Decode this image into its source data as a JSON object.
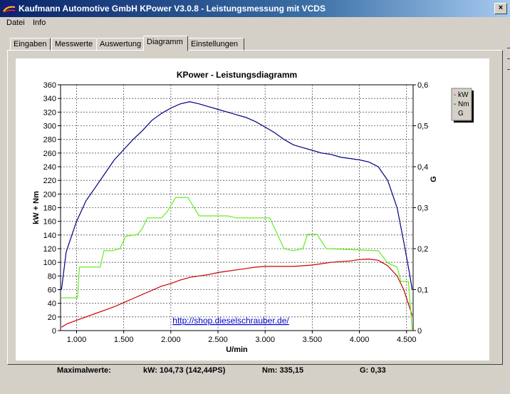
{
  "window": {
    "title": "Kaufmann Automotive GmbH  KPower V3.0.8 - Leistungsmessung mit VCDS",
    "close_glyph": "×"
  },
  "menu": [
    "Datei",
    "Info"
  ],
  "tabs": [
    {
      "label": "Eingaben",
      "active": false
    },
    {
      "label": "Messwerte",
      "active": false
    },
    {
      "label": "Auswertung",
      "active": false
    },
    {
      "label": "Diagramm",
      "active": true
    },
    {
      "label": "Einstellungen",
      "active": false
    }
  ],
  "chart_data": {
    "type": "line",
    "title": "KPower - Leistungsdiagramm",
    "xlabel": "U/min",
    "ylabel_left": "kW + Nm",
    "ylabel_right": "G",
    "xlim": [
      830,
      4570
    ],
    "ylim_left": [
      0,
      360
    ],
    "ylim_right": [
      0,
      0.6
    ],
    "x_ticks": [
      1000,
      1500,
      2000,
      2500,
      3000,
      3500,
      4000,
      4500
    ],
    "x_tick_labels": [
      "1.000",
      "1.500",
      "2.000",
      "2.500",
      "3.000",
      "3.500",
      "4.000",
      "4.500"
    ],
    "y_left_ticks": [
      0,
      20,
      40,
      60,
      80,
      100,
      120,
      140,
      160,
      180,
      200,
      220,
      240,
      260,
      280,
      300,
      320,
      340,
      360
    ],
    "y_right_ticks": [
      0,
      0.1,
      0.2,
      0.3,
      0.4,
      0.5,
      0.6
    ],
    "y_right_tick_labels": [
      "0",
      "0,1",
      "0,2",
      "0,3",
      "0,4",
      "0,5",
      "0,6"
    ],
    "grid": true,
    "legend_position": "top-right",
    "annotation": "http://shop.dieselschrauber.de/",
    "series": [
      {
        "name": "kW",
        "axis": "left",
        "color": "#cc0000",
        "points": [
          [
            840,
            5
          ],
          [
            900,
            10
          ],
          [
            1000,
            15
          ],
          [
            1100,
            20
          ],
          [
            1200,
            25
          ],
          [
            1300,
            30
          ],
          [
            1400,
            35
          ],
          [
            1500,
            41
          ],
          [
            1600,
            47
          ],
          [
            1700,
            53
          ],
          [
            1800,
            59
          ],
          [
            1900,
            65
          ],
          [
            2000,
            69
          ],
          [
            2100,
            74
          ],
          [
            2200,
            78
          ],
          [
            2300,
            80
          ],
          [
            2400,
            82
          ],
          [
            2500,
            85
          ],
          [
            2600,
            87
          ],
          [
            2700,
            89
          ],
          [
            2800,
            91
          ],
          [
            2900,
            93
          ],
          [
            3000,
            94
          ],
          [
            3100,
            94
          ],
          [
            3200,
            94
          ],
          [
            3300,
            94
          ],
          [
            3400,
            95
          ],
          [
            3500,
            96
          ],
          [
            3600,
            98
          ],
          [
            3700,
            100
          ],
          [
            3800,
            101
          ],
          [
            3900,
            102
          ],
          [
            4000,
            104
          ],
          [
            4100,
            104.73
          ],
          [
            4200,
            103
          ],
          [
            4300,
            95
          ],
          [
            4400,
            80
          ],
          [
            4470,
            60
          ],
          [
            4530,
            35
          ],
          [
            4560,
            22
          ]
        ]
      },
      {
        "name": "Nm",
        "axis": "left",
        "color": "#000080",
        "points": [
          [
            840,
            60
          ],
          [
            890,
            115
          ],
          [
            950,
            140
          ],
          [
            1000,
            160
          ],
          [
            1100,
            190
          ],
          [
            1200,
            210
          ],
          [
            1300,
            230
          ],
          [
            1400,
            250
          ],
          [
            1500,
            265
          ],
          [
            1600,
            280
          ],
          [
            1700,
            293
          ],
          [
            1800,
            308
          ],
          [
            1900,
            318
          ],
          [
            2000,
            326
          ],
          [
            2100,
            332
          ],
          [
            2200,
            335.15
          ],
          [
            2300,
            332
          ],
          [
            2400,
            328
          ],
          [
            2500,
            324
          ],
          [
            2600,
            320
          ],
          [
            2700,
            316
          ],
          [
            2800,
            312
          ],
          [
            2900,
            306
          ],
          [
            3000,
            298
          ],
          [
            3100,
            290
          ],
          [
            3200,
            280
          ],
          [
            3300,
            272
          ],
          [
            3400,
            268
          ],
          [
            3500,
            264
          ],
          [
            3600,
            260
          ],
          [
            3700,
            258
          ],
          [
            3800,
            254
          ],
          [
            3900,
            252
          ],
          [
            4000,
            250
          ],
          [
            4100,
            247
          ],
          [
            4200,
            240
          ],
          [
            4300,
            220
          ],
          [
            4400,
            180
          ],
          [
            4470,
            130
          ],
          [
            4530,
            85
          ],
          [
            4560,
            60
          ]
        ]
      },
      {
        "name": "G",
        "axis": "right",
        "color": "#66ee22",
        "points": [
          [
            840,
            0.08
          ],
          [
            980,
            0.08
          ],
          [
            1010,
            0.08
          ],
          [
            1030,
            0.155
          ],
          [
            1250,
            0.155
          ],
          [
            1290,
            0.195
          ],
          [
            1380,
            0.195
          ],
          [
            1460,
            0.2
          ],
          [
            1520,
            0.23
          ],
          [
            1650,
            0.235
          ],
          [
            1700,
            0.25
          ],
          [
            1750,
            0.275
          ],
          [
            1900,
            0.275
          ],
          [
            1960,
            0.29
          ],
          [
            2050,
            0.325
          ],
          [
            2180,
            0.325
          ],
          [
            2300,
            0.28
          ],
          [
            2600,
            0.28
          ],
          [
            2700,
            0.275
          ],
          [
            3050,
            0.275
          ],
          [
            3200,
            0.2
          ],
          [
            3300,
            0.195
          ],
          [
            3400,
            0.2
          ],
          [
            3450,
            0.235
          ],
          [
            3550,
            0.235
          ],
          [
            3650,
            0.2
          ],
          [
            4200,
            0.195
          ],
          [
            4300,
            0.165
          ],
          [
            4400,
            0.155
          ],
          [
            4440,
            0.12
          ],
          [
            4520,
            0.12
          ],
          [
            4560,
            0
          ]
        ]
      }
    ]
  },
  "summary": {
    "label": "Maximalwerte:",
    "kw": "kW: 104,73 (142,44PS)",
    "nm": "Nm: 335,15",
    "g": "G: 0,33"
  }
}
